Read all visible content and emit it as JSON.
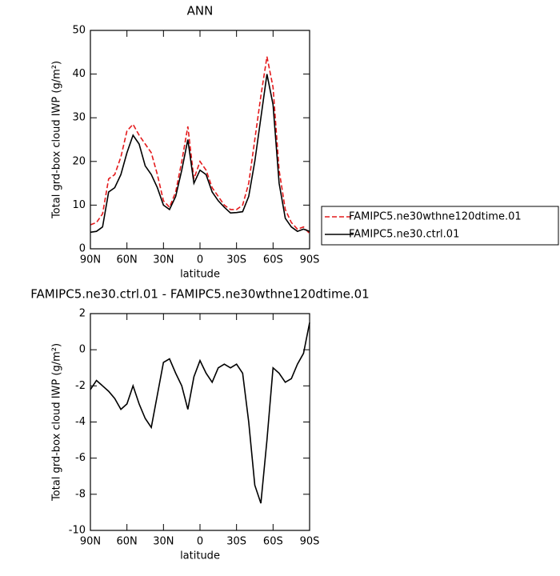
{
  "chart_data": [
    {
      "type": "line",
      "title": "ANN",
      "xlabel": "latitude",
      "ylabel": "Total grd-box cloud IWP (g/m²)",
      "x": [
        90,
        85,
        80,
        75,
        70,
        65,
        60,
        55,
        50,
        45,
        40,
        35,
        30,
        25,
        20,
        15,
        10,
        5,
        0,
        -5,
        -10,
        -15,
        -20,
        -25,
        -30,
        -35,
        -40,
        -45,
        -50,
        -55,
        -60,
        -65,
        -70,
        -75,
        -80,
        -85,
        -90
      ],
      "xlim": [
        90,
        -90
      ],
      "xticks": [
        {
          "value": 90,
          "label": "90N"
        },
        {
          "value": 60,
          "label": "60N"
        },
        {
          "value": 30,
          "label": "30N"
        },
        0,
        {
          "value": -30,
          "label": "30S"
        },
        {
          "value": -60,
          "label": "60S"
        },
        {
          "value": -90,
          "label": "90S"
        }
      ],
      "ylim": [
        0,
        50
      ],
      "yticks": [
        0,
        10,
        20,
        30,
        40,
        50
      ],
      "legend": "right",
      "series": [
        {
          "name": "FAMIPC5.ne30wthne120dtime.01",
          "color": "#e41a1c",
          "dash": "dashed",
          "values": [
            5.5,
            6,
            8,
            16,
            17,
            21,
            27,
            28.5,
            26,
            24,
            22,
            17,
            11,
            9.5,
            13,
            20,
            28,
            16,
            20,
            18,
            14,
            12,
            10,
            9,
            9,
            10,
            15,
            25,
            35,
            44,
            37,
            18,
            9,
            6,
            4.5,
            5,
            3.5
          ]
        },
        {
          "name": "FAMIPC5.ne30.ctrl.01",
          "color": "#000000",
          "dash": "solid",
          "values": [
            3.8,
            4,
            5,
            13,
            14,
            17,
            22,
            26,
            24,
            19,
            17,
            14,
            10,
            9,
            12,
            18,
            25,
            15,
            18,
            17,
            13,
            11,
            9.5,
            8.2,
            8.3,
            8.5,
            12,
            20,
            30,
            40,
            33,
            15,
            7,
            5,
            4,
            4.5,
            4
          ]
        }
      ]
    },
    {
      "type": "line",
      "title": "FAMIPC5.ne30.ctrl.01 - FAMIPC5.ne30wthne120dtime.01",
      "xlabel": "latitude",
      "ylabel": "Total grd-box cloud IWP (g/m²)",
      "x": [
        90,
        85,
        80,
        75,
        70,
        65,
        60,
        55,
        50,
        45,
        40,
        35,
        30,
        25,
        20,
        15,
        10,
        5,
        0,
        -5,
        -10,
        -15,
        -20,
        -25,
        -30,
        -35,
        -40,
        -45,
        -50,
        -55,
        -60,
        -65,
        -70,
        -75,
        -80,
        -85,
        -90
      ],
      "xlim": [
        90,
        -90
      ],
      "xticks": [
        {
          "value": 90,
          "label": "90N"
        },
        {
          "value": 60,
          "label": "60N"
        },
        {
          "value": 30,
          "label": "30N"
        },
        0,
        {
          "value": -30,
          "label": "30S"
        },
        {
          "value": -60,
          "label": "60S"
        },
        {
          "value": -90,
          "label": "90S"
        }
      ],
      "ylim": [
        -10,
        2
      ],
      "yticks": [
        -10,
        -8,
        -6,
        -4,
        -2,
        0,
        2
      ],
      "series": [
        {
          "color": "#000000",
          "dash": "solid",
          "values": [
            -2.2,
            -1.7,
            -2,
            -2.3,
            -2.7,
            -3.3,
            -3,
            -2,
            -3,
            -3.8,
            -4.3,
            -2.5,
            -0.7,
            -0.5,
            -1.3,
            -2,
            -3.3,
            -1.5,
            -0.6,
            -1.3,
            -1.8,
            -1,
            -0.8,
            -1,
            -0.8,
            -1.3,
            -4,
            -7.5,
            -8.5,
            -5,
            -1,
            -1.3,
            -1.8,
            -1.6,
            -0.8,
            -0.2,
            1.5
          ]
        }
      ]
    }
  ]
}
